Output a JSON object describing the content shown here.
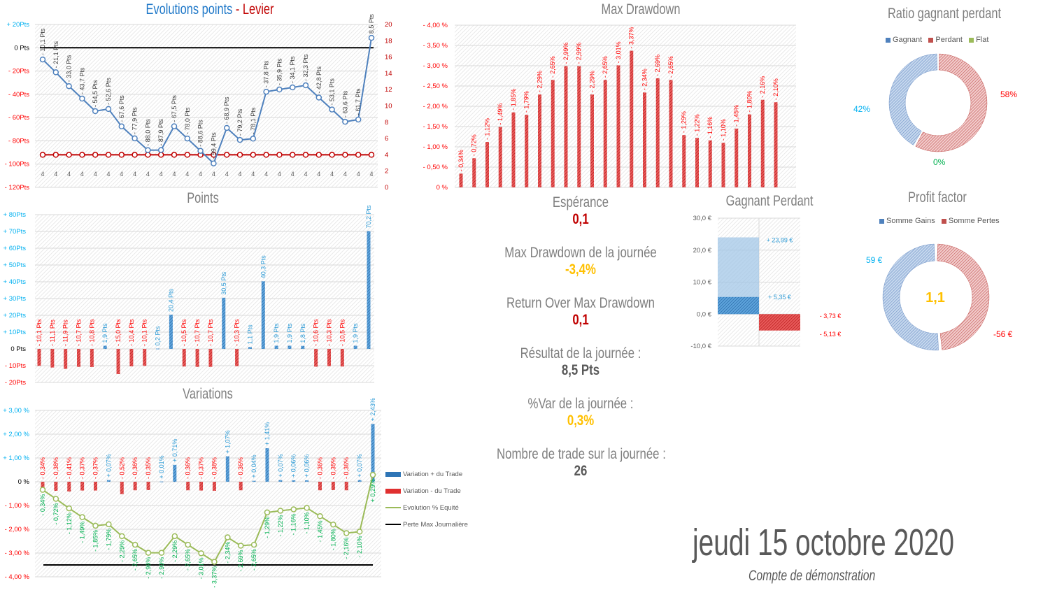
{
  "titles": {
    "evolution_part1": "Evolutions points",
    "evolution_part2": "- Levier",
    "max_drawdown": "Max Drawdown",
    "ratio": "Ratio gagnant perdant",
    "points": "Points",
    "variations": "Variations",
    "gagnant_perdant": "Gagnant Perdant",
    "profit_factor": "Profit factor"
  },
  "stats": {
    "esperance_label": "Espérance",
    "esperance_value": "0,1",
    "maxdd_label": "Max Drawdown de la journée",
    "maxdd_value": "-3,4%",
    "romd_label": "Return Over Max Drawdown",
    "romd_value": "0,1",
    "resultat_label": "Résultat de la journée :",
    "resultat_value": "8,5 Pts",
    "var_label": "%Var de la journée :",
    "var_value": "0,3%",
    "trades_label": "Nombre de trade sur la journée :",
    "trades_value": "26"
  },
  "footer": {
    "date": "jeudi 15 octobre 2020",
    "account": "Compte de démonstration"
  },
  "colors": {
    "blue": "#4f81bd",
    "red": "#c00000",
    "bright_red": "#ff0000",
    "cyan": "#00b0f0",
    "green": "#9bbb59",
    "green_text": "#00b050",
    "yellow": "#ffc000",
    "gray": "#7f7f7f"
  },
  "chart_data": [
    {
      "id": "evolution",
      "type": "line",
      "title": "Evolutions points - Levier",
      "ylim": [
        -120,
        20
      ],
      "y2lim": [
        0,
        20
      ],
      "yticks": [
        "+ 20Pts",
        "0 Pts",
        "- 20Pts",
        "- 40Pts",
        "- 60Pts",
        "- 80Pts",
        "- 100Pts",
        "- 120Pts"
      ],
      "y2ticks": [
        "20",
        "18",
        "16",
        "14",
        "12",
        "10",
        "8",
        "6",
        "4",
        "2",
        "0"
      ],
      "series": [
        {
          "values": [
            -10.1,
            -21.1,
            -33.0,
            -43.7,
            -54.5,
            -52.6,
            -67.6,
            -77.9,
            -88.0,
            -87.9,
            -67.5,
            -78.0,
            -88.6,
            -99.4,
            -68.9,
            -79.2,
            -78.1,
            -37.8,
            -35.9,
            -34.1,
            -32.3,
            -42.8,
            -53.1,
            -63.6,
            -61.7,
            8.5
          ]
        },
        {
          "values": [
            4,
            4,
            4,
            4,
            4,
            4,
            4,
            4,
            4,
            4,
            4,
            4,
            4,
            4,
            4,
            4,
            4,
            4,
            4,
            4,
            4,
            4,
            4,
            4,
            4,
            4
          ],
          "axis": "right"
        }
      ],
      "reference_line": 0,
      "grid": true
    },
    {
      "id": "drawdown",
      "type": "bar",
      "title": "Max Drawdown",
      "ylim": [
        -4,
        0
      ],
      "yticks": [
        "- 4,00 %",
        "- 3,50 %",
        "- 3,00 %",
        "- 2,50 %",
        "- 2,00 %",
        "- 1,50 %",
        "- 1,00 %",
        "- 0,50 %",
        "0 %"
      ],
      "values": [
        -0.34,
        -0.72,
        -1.12,
        -1.49,
        -1.85,
        -1.79,
        -2.29,
        -2.65,
        -2.99,
        -2.99,
        -2.29,
        -2.65,
        -3.01,
        -3.37,
        -2.34,
        -2.69,
        -2.65,
        -1.29,
        -1.22,
        -1.16,
        -1.1,
        -1.45,
        -1.8,
        -2.16,
        -2.1
      ],
      "grid": true
    },
    {
      "id": "points",
      "type": "bar",
      "title": "Points",
      "ylim": [
        -20,
        80
      ],
      "yticks": [
        "+ 80Pts",
        "+ 70Pts",
        "+ 60Pts",
        "+ 50Pts",
        "+ 40Pts",
        "+ 30Pts",
        "+ 20Pts",
        "+ 10Pts",
        "0 Pts",
        "- 10Pts",
        "- 20Pts"
      ],
      "values": [
        -10.1,
        -11.1,
        -11.9,
        -10.7,
        -10.8,
        1.9,
        -15.0,
        -10.4,
        -10.1,
        0.2,
        20.4,
        -10.5,
        -10.7,
        -10.7,
        30.5,
        -10.3,
        1.1,
        40.3,
        1.9,
        1.9,
        1.8,
        -10.6,
        -10.3,
        -10.5,
        1.9,
        70.2
      ],
      "grid": true
    },
    {
      "id": "variations",
      "type": "bar+line",
      "title": "Variations",
      "ylim": [
        -4,
        3
      ],
      "yticks": [
        "+ 3,00 %",
        "+ 2,00 %",
        "+ 1,00 %",
        "0 %",
        "- 1,00 %",
        "- 2,00 %",
        "- 3,00 %",
        "- 4,00 %"
      ],
      "series": [
        {
          "name": "Variation + du Trade",
          "values": [
            null,
            null,
            null,
            null,
            null,
            0.07,
            null,
            null,
            null,
            0.01,
            0.71,
            null,
            null,
            null,
            1.07,
            null,
            0.04,
            1.41,
            0.07,
            0.06,
            0.06,
            null,
            null,
            null,
            0.07,
            2.43
          ]
        },
        {
          "name": "Variation - du Trade",
          "values": [
            -0.34,
            -0.38,
            -0.41,
            -0.37,
            -0.37,
            null,
            -0.52,
            -0.36,
            -0.35,
            null,
            null,
            -0.36,
            -0.37,
            -0.38,
            null,
            -0.36,
            null,
            null,
            null,
            null,
            null,
            -0.36,
            -0.35,
            -0.36,
            null,
            null
          ]
        },
        {
          "name": "Evolution % Equité",
          "values": [
            -0.34,
            -0.72,
            -1.12,
            -1.49,
            -1.85,
            -1.79,
            -2.29,
            -2.65,
            -2.99,
            -2.99,
            -2.29,
            -2.65,
            -3.01,
            -3.37,
            -2.34,
            -2.69,
            -2.65,
            -1.29,
            -1.22,
            -1.16,
            -1.1,
            -1.45,
            -1.8,
            -2.16,
            -2.1,
            0.29
          ]
        },
        {
          "name": "Perte Max Journalière",
          "value": -3.5
        }
      ],
      "legend": "right",
      "grid": true
    },
    {
      "id": "ratio",
      "type": "pie",
      "title": "Ratio gagnant perdant",
      "categories": [
        "Gagnant",
        "Perdant",
        "Flat"
      ],
      "values": [
        42,
        58,
        0
      ],
      "labels": [
        "42%",
        "58%",
        "0%"
      ],
      "legend": "top"
    },
    {
      "id": "gagnant_perdant",
      "type": "bar",
      "title": "Gagnant Perdant",
      "ylim": [
        -10,
        30
      ],
      "yticks": [
        "30,0 €",
        "20,0 €",
        "10,0 €",
        "0,0 €",
        "-10,0 €"
      ],
      "series": [
        {
          "values": [
            23.99,
            -5.13
          ],
          "labels": [
            "+ 23,99 €",
            "- 5,13 €"
          ]
        },
        {
          "values": [
            5.35,
            -3.73
          ],
          "labels": [
            "+ 5,35 €",
            "- 3,73 €"
          ]
        }
      ]
    },
    {
      "id": "profit_factor",
      "type": "pie",
      "title": "Profit factor",
      "categories": [
        "Somme Gains",
        "Somme Pertes"
      ],
      "values": [
        59,
        56
      ],
      "labels": [
        "59 €",
        "-56 €"
      ],
      "center_label": "1,1",
      "legend": "top"
    }
  ]
}
